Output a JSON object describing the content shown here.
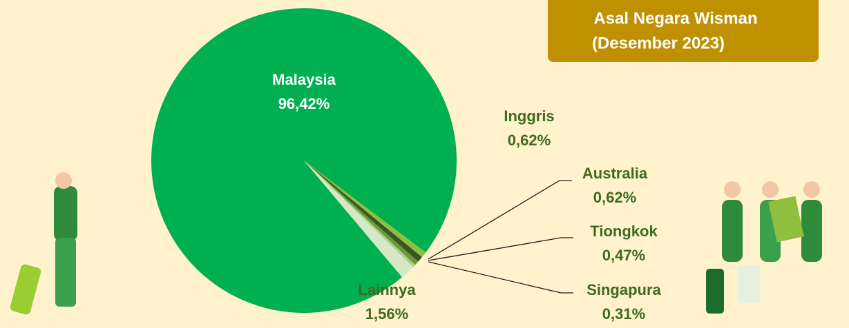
{
  "chart_data": {
    "type": "pie",
    "title": "Asal Negara Wisman",
    "subtitle": "(Desember 2023)",
    "categories": [
      "Malaysia",
      "Inggris",
      "Australia",
      "Tiongkok",
      "Singapura",
      "Lainnya"
    ],
    "values": [
      96.42,
      0.62,
      0.62,
      0.47,
      0.31,
      1.56
    ],
    "value_labels": [
      "96,42%",
      "0,62%",
      "0,62%",
      "0,47%",
      "0,31%",
      "1,56%"
    ],
    "colors": [
      "#00b050",
      "#8fbf3f",
      "#375623",
      "#6a9a34",
      "#a9d18e",
      "#d6e8c8"
    ]
  }
}
